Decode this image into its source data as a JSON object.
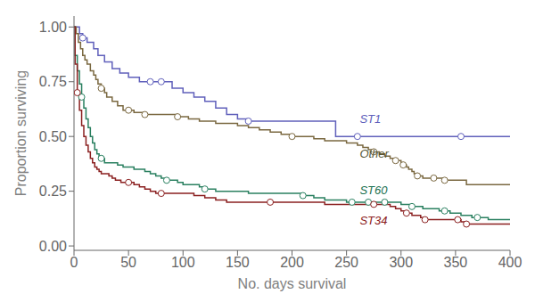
{
  "chart_data": {
    "type": "step",
    "title": "",
    "xlabel": "No. days survival",
    "ylabel": "Proportion surviving",
    "xlim": [
      0,
      400
    ],
    "ylim": [
      -0.02,
      1.05
    ],
    "xticks": [
      0,
      50,
      100,
      150,
      200,
      250,
      300,
      350,
      400
    ],
    "yticks": [
      {
        "value": 0.0,
        "label": "0.00"
      },
      {
        "value": 0.25,
        "label": "0.25"
      },
      {
        "value": 0.5,
        "label": "0.50"
      },
      {
        "value": 0.75,
        "label": "0.75"
      },
      {
        "value": 1.0,
        "label": "1.00"
      }
    ],
    "grid": false,
    "series": [
      {
        "name": "ST1",
        "color": "#6060bb",
        "x": [
          0,
          3,
          5,
          8,
          12,
          15,
          18,
          22,
          28,
          35,
          42,
          50,
          60,
          70,
          80,
          90,
          100,
          110,
          120,
          130,
          140,
          150,
          160,
          170,
          180,
          200,
          220,
          240,
          260,
          290,
          315,
          355,
          400
        ],
        "values": [
          1.0,
          1.0,
          0.97,
          0.95,
          0.93,
          0.93,
          0.9,
          0.87,
          0.84,
          0.81,
          0.79,
          0.77,
          0.75,
          0.75,
          0.75,
          0.72,
          0.7,
          0.68,
          0.66,
          0.63,
          0.6,
          0.58,
          0.57,
          0.57,
          0.57,
          0.57,
          0.57,
          0.5,
          0.5,
          0.5,
          0.5,
          0.5,
          0.5
        ],
        "censors": {
          "x": [
            8,
            70,
            80,
            160,
            260,
            355
          ],
          "values": [
            0.95,
            0.75,
            0.75,
            0.57,
            0.5,
            0.5
          ]
        }
      },
      {
        "name": "Other",
        "color": "#7a6840",
        "x": [
          0,
          2,
          4,
          6,
          8,
          10,
          12,
          15,
          18,
          20,
          22,
          25,
          28,
          30,
          35,
          40,
          45,
          50,
          55,
          60,
          65,
          70,
          75,
          80,
          85,
          90,
          95,
          100,
          105,
          110,
          115,
          120,
          125,
          130,
          140,
          150,
          160,
          170,
          180,
          190,
          200,
          210,
          220,
          230,
          240,
          250,
          260,
          265,
          270,
          275,
          280,
          285,
          290,
          295,
          300,
          302,
          305,
          307,
          310,
          312,
          315,
          320,
          330,
          340,
          350,
          360,
          400
        ],
        "values": [
          1.0,
          0.97,
          0.93,
          0.9,
          0.87,
          0.85,
          0.83,
          0.8,
          0.78,
          0.76,
          0.74,
          0.72,
          0.7,
          0.68,
          0.66,
          0.64,
          0.62,
          0.62,
          0.61,
          0.61,
          0.6,
          0.6,
          0.6,
          0.6,
          0.6,
          0.6,
          0.59,
          0.59,
          0.58,
          0.58,
          0.57,
          0.57,
          0.57,
          0.56,
          0.56,
          0.55,
          0.54,
          0.53,
          0.52,
          0.51,
          0.5,
          0.5,
          0.49,
          0.48,
          0.48,
          0.47,
          0.46,
          0.45,
          0.44,
          0.43,
          0.42,
          0.41,
          0.4,
          0.39,
          0.38,
          0.37,
          0.36,
          0.35,
          0.34,
          0.33,
          0.32,
          0.31,
          0.31,
          0.3,
          0.3,
          0.28,
          0.28
        ],
        "censors": {
          "x": [
            25,
            50,
            65,
            95,
            200,
            275,
            295,
            302,
            315,
            330,
            340
          ],
          "values": [
            0.72,
            0.62,
            0.6,
            0.59,
            0.5,
            0.43,
            0.39,
            0.37,
            0.32,
            0.31,
            0.3
          ]
        }
      },
      {
        "name": "ST60",
        "color": "#2a8060",
        "x": [
          0,
          1,
          3,
          5,
          7,
          9,
          11,
          13,
          15,
          17,
          19,
          21,
          23,
          25,
          28,
          30,
          35,
          40,
          45,
          50,
          55,
          60,
          65,
          70,
          75,
          80,
          85,
          90,
          95,
          100,
          105,
          110,
          115,
          120,
          125,
          130,
          140,
          150,
          160,
          170,
          180,
          190,
          200,
          210,
          220,
          230,
          240,
          250,
          255,
          260,
          265,
          270,
          275,
          280,
          285,
          290,
          295,
          300,
          305,
          310,
          315,
          320,
          325,
          330,
          335,
          340,
          345,
          350,
          355,
          360,
          365,
          370,
          380,
          400
        ],
        "values": [
          1.0,
          0.87,
          0.8,
          0.74,
          0.68,
          0.63,
          0.58,
          0.54,
          0.5,
          0.47,
          0.44,
          0.42,
          0.41,
          0.4,
          0.38,
          0.38,
          0.38,
          0.37,
          0.36,
          0.36,
          0.35,
          0.35,
          0.34,
          0.33,
          0.32,
          0.31,
          0.3,
          0.3,
          0.29,
          0.28,
          0.28,
          0.28,
          0.27,
          0.26,
          0.26,
          0.25,
          0.25,
          0.25,
          0.24,
          0.24,
          0.24,
          0.24,
          0.24,
          0.23,
          0.22,
          0.21,
          0.21,
          0.2,
          0.2,
          0.2,
          0.2,
          0.2,
          0.2,
          0.2,
          0.2,
          0.2,
          0.2,
          0.19,
          0.19,
          0.18,
          0.18,
          0.17,
          0.17,
          0.17,
          0.16,
          0.16,
          0.15,
          0.15,
          0.14,
          0.14,
          0.13,
          0.13,
          0.12,
          0.12
        ],
        "censors": {
          "x": [
            7,
            25,
            85,
            120,
            210,
            255,
            270,
            285,
            310,
            340,
            370
          ],
          "values": [
            0.68,
            0.4,
            0.3,
            0.26,
            0.23,
            0.2,
            0.2,
            0.2,
            0.18,
            0.16,
            0.13
          ]
        }
      },
      {
        "name": "ST34",
        "color": "#8b2020",
        "x": [
          0,
          1,
          3,
          5,
          7,
          9,
          11,
          13,
          15,
          17,
          19,
          21,
          23,
          25,
          28,
          30,
          32,
          35,
          38,
          40,
          43,
          46,
          50,
          55,
          60,
          65,
          70,
          75,
          80,
          85,
          90,
          95,
          100,
          110,
          120,
          130,
          140,
          150,
          160,
          165,
          170,
          180,
          190,
          200,
          210,
          220,
          230,
          240,
          250,
          260,
          265,
          270,
          275,
          280,
          285,
          290,
          295,
          300,
          305,
          310,
          315,
          318,
          322,
          330,
          335,
          340,
          345,
          348,
          352,
          355,
          360,
          380,
          400
        ],
        "values": [
          1.0,
          0.83,
          0.7,
          0.62,
          0.55,
          0.5,
          0.46,
          0.43,
          0.4,
          0.38,
          0.36,
          0.35,
          0.34,
          0.33,
          0.33,
          0.33,
          0.32,
          0.31,
          0.3,
          0.3,
          0.29,
          0.29,
          0.29,
          0.28,
          0.27,
          0.26,
          0.25,
          0.24,
          0.24,
          0.24,
          0.24,
          0.24,
          0.24,
          0.23,
          0.22,
          0.21,
          0.2,
          0.2,
          0.2,
          0.2,
          0.2,
          0.2,
          0.2,
          0.2,
          0.2,
          0.2,
          0.19,
          0.19,
          0.19,
          0.19,
          0.19,
          0.19,
          0.19,
          0.19,
          0.19,
          0.18,
          0.17,
          0.16,
          0.15,
          0.14,
          0.14,
          0.13,
          0.12,
          0.12,
          0.12,
          0.12,
          0.12,
          0.12,
          0.12,
          0.11,
          0.1,
          0.1,
          0.1
        ],
        "censors": {
          "x": [
            3,
            50,
            80,
            180,
            275,
            305,
            322,
            352,
            360
          ],
          "values": [
            0.7,
            0.29,
            0.24,
            0.2,
            0.19,
            0.15,
            0.12,
            0.12,
            0.1
          ]
        }
      }
    ],
    "annotations": [
      {
        "text": "ST1",
        "x": 258,
        "y": 0.58,
        "color": "#6060bb"
      },
      {
        "text": "Other",
        "x": 258,
        "y": 0.42,
        "color": "#555533"
      },
      {
        "text": "ST60",
        "x": 258,
        "y": 0.255,
        "color": "#1a7050"
      },
      {
        "text": "ST34",
        "x": 258,
        "y": 0.115,
        "color": "#8b2020"
      }
    ]
  }
}
